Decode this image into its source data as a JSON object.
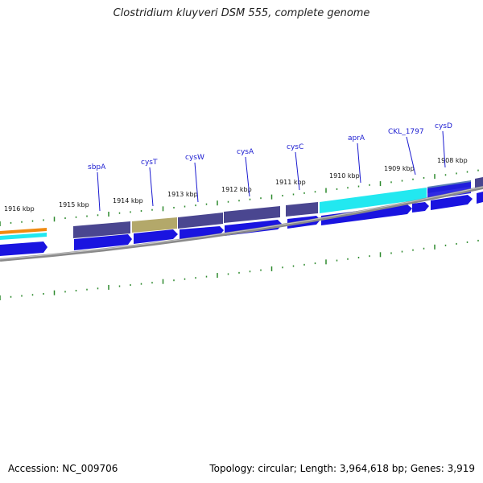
{
  "title": "Clostridium kluyveri DSM 555, complete genome",
  "accession": "Accession: NC_009706",
  "topology": "Topology: circular; Length: 3,964,618 bp; Genes: 3,919",
  "kbp_labels": [
    "1916 kbp",
    "1915 kbp",
    "1914 kbp",
    "1913 kbp",
    "1912 kbp",
    "1911 kbp",
    "1910 kbp",
    "1909 kbp",
    "1908 kbp"
  ],
  "gene_labels": [
    "sbpA",
    "cysT",
    "cysW",
    "cysA",
    "cysC",
    "aprA",
    "CKL_1797",
    "cysD"
  ],
  "colors": {
    "arrow_blue": "#1a14e0",
    "cog_purple": "#4a4690",
    "cog_olive": "#b3a86a",
    "cog_cyan": "#22e8f0",
    "cog_steel": "#5a7fb5",
    "cog_orange": "#f08a10",
    "tick_green": "#2e8a2e",
    "backbone_grey": "#8a8a8a",
    "label_blue": "#1a1ad0"
  }
}
